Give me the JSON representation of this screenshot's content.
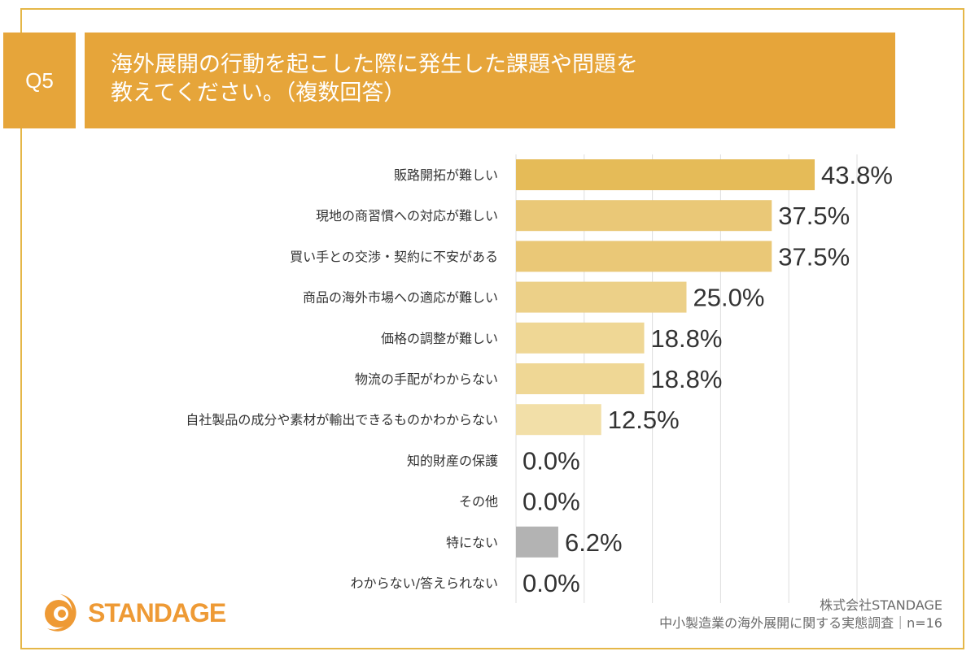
{
  "header": {
    "question_number": "Q5",
    "title_line1": "海外展開の行動を起こした際に発生した課題や問題を",
    "title_line2": "教えてください。（複数回答）"
  },
  "chart_data": {
    "type": "bar",
    "orientation": "horizontal",
    "title": "海外展開の行動を起こした際に発生した課題や問題を教えてください。（複数回答）",
    "xlabel": "",
    "ylabel": "",
    "xlim": [
      0,
      50
    ],
    "grid": true,
    "grid_step": 10,
    "categories": [
      "販路開拓が難しい",
      "現地の商習慣への対応が難しい",
      "買い手との交渉・契約に不安がある",
      "商品の海外市場への適応が難しい",
      "価格の調整が難しい",
      "物流の手配がわからない",
      "自社製品の成分や素材が輸出できるものかわからない",
      "知的財産の保護",
      "その他",
      "特にない",
      "わからない/答えられない"
    ],
    "values": [
      43.8,
      37.5,
      37.5,
      25.0,
      18.8,
      18.8,
      12.5,
      0.0,
      0.0,
      6.2,
      0.0
    ],
    "value_labels": [
      "43.8%",
      "37.5%",
      "37.5%",
      "25.0%",
      "18.8%",
      "18.8%",
      "12.5%",
      "0.0%",
      "0.0%",
      "6.2%",
      "0.0%"
    ],
    "bar_colors": [
      "#e5bb58",
      "#eac877",
      "#eac877",
      "#ecd088",
      "#efd795",
      "#efd795",
      "#f2dfa8",
      "#f2dfa8",
      "#f2dfa8",
      "#b3b3b3",
      "#f2dfa8"
    ]
  },
  "colors": {
    "accent": "#e6a53a",
    "frame": "#e5b748",
    "logo": "#ee9a35",
    "gridline": "#dddddd"
  },
  "logo": {
    "text": "STANDAGE",
    "icon": "standage-logo-icon"
  },
  "source": {
    "company": "株式会社STANDAGE",
    "survey": "中小製造業の海外展開に関する実態調査｜n=16"
  }
}
